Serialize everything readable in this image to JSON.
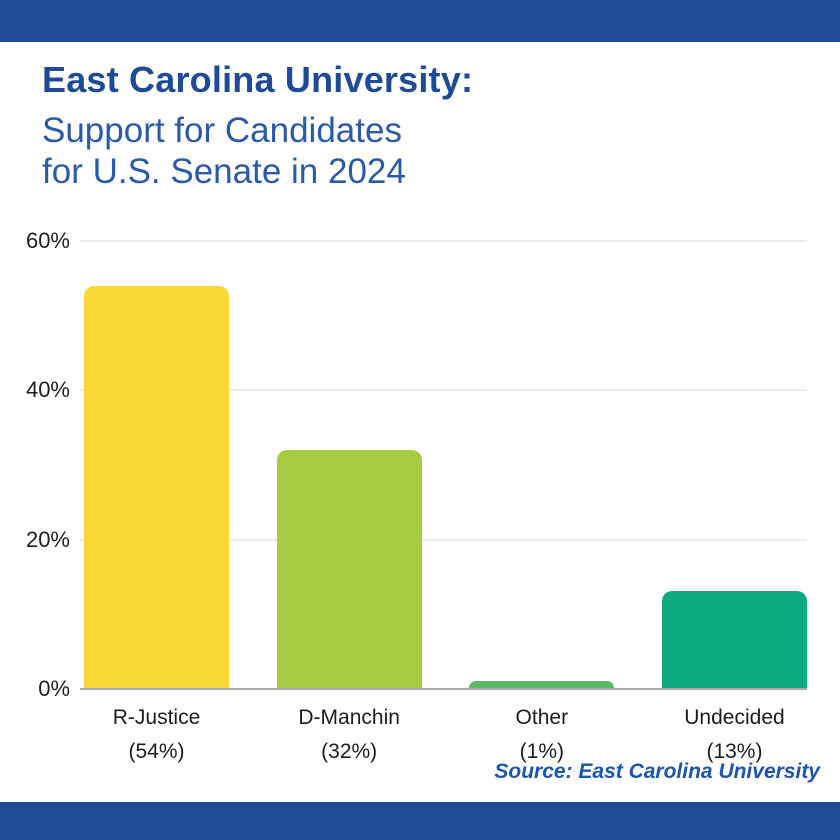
{
  "header": {
    "title": "East Carolina University:",
    "subtitle_line1": "Support for Candidates",
    "subtitle_line2": "for U.S. Senate in 2024"
  },
  "chart_data": {
    "type": "bar",
    "title": "East Carolina University: Support for Candidates for U.S. Senate in 2024",
    "categories": [
      "R-Justice",
      "D-Manchin",
      "Other",
      "Undecided"
    ],
    "values": [
      54,
      32,
      1,
      13
    ],
    "value_labels": [
      "(54%)",
      "(32%)",
      "(1%)",
      "(13%)"
    ],
    "bar_colors": [
      "#f9d838",
      "#a5cc43",
      "#58ba60",
      "#0caa7c"
    ],
    "xlabel": "",
    "ylabel": "",
    "ylim": [
      0,
      60
    ],
    "yticks": [
      "0%",
      "20%",
      "40%",
      "60%"
    ],
    "grid": "horizontal",
    "legend": "none"
  },
  "footer": {
    "source": "Source: East Carolina University"
  },
  "colors": {
    "band_blue": "#1e4b95",
    "title_blue": "#1e4a96",
    "subtitle_blue": "#2b5aa7",
    "source_blue": "#1c55a9",
    "gridline": "#ececec",
    "axis_line": "#ababab",
    "tick_text": "#1f1f1f"
  }
}
